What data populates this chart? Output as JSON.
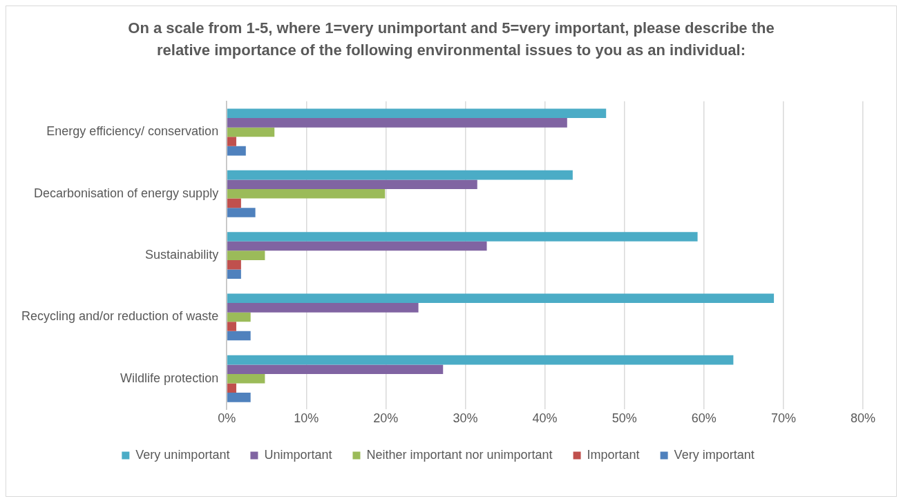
{
  "chart_data": {
    "type": "bar",
    "orientation": "horizontal",
    "title": "On a scale from 1-5, where 1=very unimportant and 5=very important, please describe the relative importance of the following environmental issues to you as an individual:",
    "categories": [
      "Energy efficiency/ conservation",
      "Decarbonisation of energy supply",
      "Sustainability",
      "Recycling and/or reduction of waste",
      "Wildlife protection"
    ],
    "series": [
      {
        "name": "Very unimportant",
        "color": "#4bacc6",
        "values": [
          47.7,
          43.5,
          59.2,
          68.8,
          63.7
        ]
      },
      {
        "name": "Unimportant",
        "color": "#8064a2",
        "values": [
          42.8,
          31.5,
          32.7,
          24.1,
          27.2
        ]
      },
      {
        "name": "Neither important nor unimportant",
        "color": "#9bbb59",
        "values": [
          6.0,
          19.9,
          4.8,
          3.0,
          4.8
        ]
      },
      {
        "name": "Important",
        "color": "#c0504d",
        "values": [
          1.2,
          1.8,
          1.8,
          1.2,
          1.2
        ]
      },
      {
        "name": "Very important",
        "color": "#4f81bd",
        "values": [
          2.4,
          3.6,
          1.8,
          3.0,
          3.0
        ]
      }
    ],
    "xlim": [
      0,
      80
    ],
    "xticks": [
      {
        "value": 0,
        "label": "0%"
      },
      {
        "value": 10,
        "label": "10%"
      },
      {
        "value": 20,
        "label": "20%"
      },
      {
        "value": 30,
        "label": "30%"
      },
      {
        "value": 40,
        "label": "40%"
      },
      {
        "value": 50,
        "label": "50%"
      },
      {
        "value": 60,
        "label": "60%"
      },
      {
        "value": 70,
        "label": "70%"
      },
      {
        "value": 80,
        "label": "80%"
      }
    ],
    "grid": "x",
    "legend": "bottom"
  }
}
